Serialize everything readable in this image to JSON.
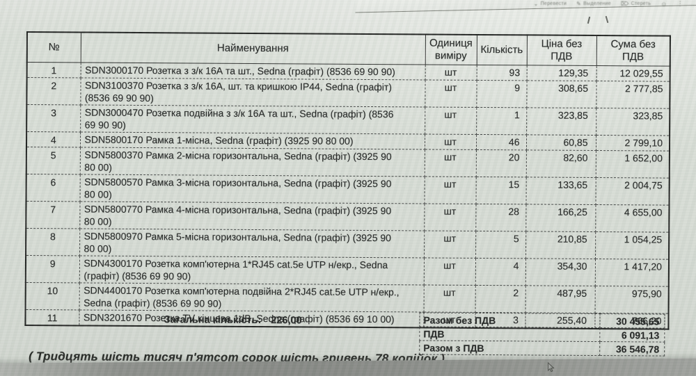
{
  "toolbar": {
    "items": [
      {
        "icon": "translate-icon",
        "label": "Перевести"
      },
      {
        "icon": "highlighter-icon",
        "label": "Выделение"
      },
      {
        "icon": "eraser-icon",
        "label": "Стереть"
      }
    ],
    "trailing_icons": [
      "emoji-icon",
      "more-icon"
    ]
  },
  "table": {
    "columns": [
      {
        "key": "no",
        "label": "№"
      },
      {
        "key": "name",
        "label": "Найменування"
      },
      {
        "key": "unit",
        "label": "Одиниця виміру"
      },
      {
        "key": "qty",
        "label": "Кількість"
      },
      {
        "key": "price",
        "label": "Ціна без ПДВ"
      },
      {
        "key": "sum",
        "label": "Сума без ПДВ"
      }
    ],
    "rows": [
      {
        "no": "1",
        "name": "SDN3000170 Розетка з з/к 16А та шт., Sedna (графіт) (8536 69 90 90)",
        "unit": "шт",
        "qty": "93",
        "price": "129,35",
        "sum": "12 029,55"
      },
      {
        "no": "2",
        "name": "SDN3100370 Розетка з з/к 16А, шт. та кришкою IP44, Sedna (графіт)\n(8536 69 90 90)",
        "unit": "шт",
        "qty": "9",
        "price": "308,65",
        "sum": "2 777,85"
      },
      {
        "no": "3",
        "name": "SDN3000470 Розетка подвійна з з/к 16А та шт., Sedna (графіт) (8536\n69 90 90)",
        "unit": "шт",
        "qty": "1",
        "price": "323,85",
        "sum": "323,85"
      },
      {
        "no": "4",
        "name": "SDN5800170 Рамка 1-місна, Sedna (графіт) (3925 90 80 00)",
        "unit": "шт",
        "qty": "46",
        "price": "60,85",
        "sum": "2 799,10"
      },
      {
        "no": "5",
        "name": "SDN5800370 Рамка 2-місна горизонтальна, Sedna (графіт) (3925 90\n80 00)",
        "unit": "шт",
        "qty": "20",
        "price": "82,60",
        "sum": "1 652,00"
      },
      {
        "no": "6",
        "name": "SDN5800570 Рамка 3-місна горизонтальна, Sedna (графіт) (3925 90\n80 00)",
        "unit": "шт",
        "qty": "15",
        "price": "133,65",
        "sum": "2 004,75"
      },
      {
        "no": "7",
        "name": "SDN5800770 Рамка 4-місна горизонтальна, Sedna (графіт) (3925 90\n80 00)",
        "unit": "шт",
        "qty": "28",
        "price": "166,25",
        "sum": "4 655,00"
      },
      {
        "no": "8",
        "name": "SDN5800970 Рамка 5-місна горизонтальна, Sedna (графіт) (3925 90\n80 00)",
        "unit": "шт",
        "qty": "5",
        "price": "210,85",
        "sum": "1 054,25"
      },
      {
        "no": "9",
        "name": "SDN4300170 Розетка комп'ютерна 1*RJ45 cat.5e UTP н/екр., Sedna\n(графіт) (8536 69 90 90)",
        "unit": "шт",
        "qty": "4",
        "price": "354,30",
        "sum": "1 417,20"
      },
      {
        "no": "10",
        "name": "SDN4400170 Розетка комп'ютерна подвійна 2*RJ45 cat.5e UTP н/екр.,\nSedna (графіт) (8536 69 90 90)",
        "unit": "шт",
        "qty": "2",
        "price": "487,95",
        "sum": "975,90"
      },
      {
        "no": "11",
        "name": "SDN3201670 Розетка TV кінцева 1dB, Sedna (графіт) (8536 69 10 00)",
        "unit": "шт",
        "qty": "3",
        "price": "255,40",
        "sum": "766,20"
      }
    ]
  },
  "summary": {
    "total_qty_label": "Загальна кількість:",
    "total_qty_value": "226,00",
    "totals": [
      {
        "label": "Разом без ПДВ",
        "value": "30 455,65"
      },
      {
        "label": "ПДВ",
        "value": "6 091,13"
      },
      {
        "label": "Разом з ПДВ",
        "value": "36 546,78"
      }
    ],
    "amount_in_words": "( Тридцять шість тисяч п'ятсот сорок шість гривень 78 копійок )"
  },
  "colors": {
    "screen_background": "#d6dbd4",
    "ink": "#1f2120",
    "bottom_strip": "#8a8c88"
  }
}
